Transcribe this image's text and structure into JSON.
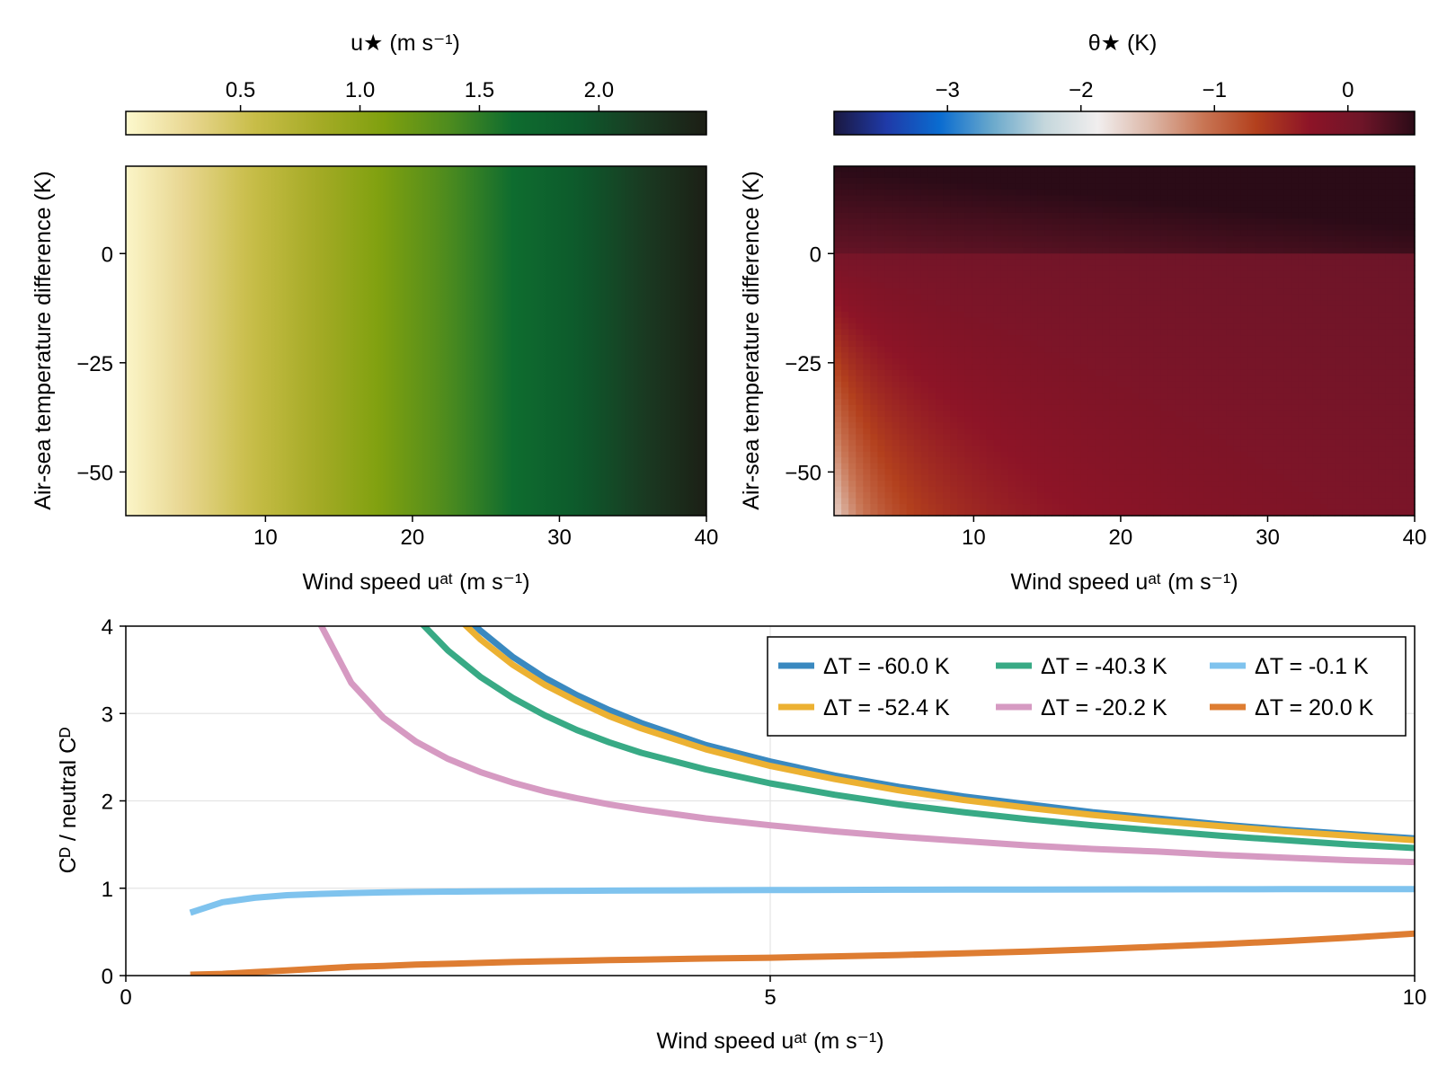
{
  "figure_title": "",
  "chart_data": [
    {
      "type": "heatmap",
      "title": "",
      "xlabel": "Wind speed uᵃᵗ (m s⁻¹)",
      "ylabel": "Air-sea temperature difference (K)",
      "xlim": [
        0.5,
        40
      ],
      "ylim": [
        -60,
        20
      ],
      "xticks": [
        10,
        20,
        30,
        40
      ],
      "xtick_labels": [
        "10",
        "20",
        "30",
        "40"
      ],
      "yticks": [
        0,
        -25,
        -50
      ],
      "ytick_labels": [
        "0",
        "−25",
        "−50"
      ],
      "grid": false,
      "colorbar": {
        "label": "u★ (m s⁻¹)",
        "position": "top",
        "range": [
          0.02,
          2.45
        ],
        "ticks": [
          0.5,
          1.0,
          1.5,
          2.0
        ],
        "tick_labels": [
          "0.5",
          "1.0",
          "1.5",
          "2.0"
        ],
        "colormap": [
          "#fdf9ce",
          "#e8d690",
          "#c8bd48",
          "#a5ab26",
          "#7fa00f",
          "#4e8c1e",
          "#0e6c2f",
          "#0d5a2c",
          "#1a3a22",
          "#1c1e15"
        ]
      }
    },
    {
      "type": "heatmap",
      "title": "",
      "xlabel": "Wind speed uᵃᵗ (m s⁻¹)",
      "ylabel": "Air-sea temperature difference (K)",
      "xlim": [
        0.5,
        40
      ],
      "ylim": [
        -60,
        20
      ],
      "xticks": [
        10,
        20,
        30,
        40
      ],
      "xtick_labels": [
        "10",
        "20",
        "30",
        "40"
      ],
      "yticks": [
        0,
        -25,
        -50
      ],
      "ytick_labels": [
        "0",
        "−25",
        "−50"
      ],
      "grid": false,
      "colorbar": {
        "label": "θ★ (K)",
        "position": "top",
        "range": [
          -3.85,
          0.5
        ],
        "ticks": [
          -3,
          -2,
          -1,
          0
        ],
        "tick_labels": [
          "−3",
          "−2",
          "−1",
          "0"
        ],
        "colormap": [
          "#1a1840",
          "#1f3aa8",
          "#0a6cd0",
          "#6aa9cc",
          "#c5d7dc",
          "#f1eeee",
          "#dcb6a6",
          "#c87554",
          "#b3401d",
          "#8d1427",
          "#6e1528",
          "#2b0b17"
        ]
      }
    },
    {
      "type": "line",
      "title": "",
      "xlabel": "Wind speed uᵃᵗ (m s⁻¹)",
      "ylabel": "Cᴰ / neutral Cᴰ",
      "xlim": [
        0,
        10
      ],
      "ylim": [
        0,
        4
      ],
      "xticks": [
        0,
        5,
        10
      ],
      "xtick_labels": [
        "0",
        "5",
        "10"
      ],
      "yticks": [
        0,
        1,
        2,
        3,
        4
      ],
      "ytick_labels": [
        "0",
        "1",
        "2",
        "3",
        "4"
      ],
      "grid": true,
      "legend_position": "top-right",
      "x": [
        0.5,
        0.75,
        1.0,
        1.25,
        1.5,
        1.75,
        2.0,
        2.25,
        2.5,
        2.75,
        3.0,
        3.25,
        3.5,
        3.75,
        4.0,
        4.5,
        5.0,
        5.5,
        6.0,
        6.5,
        7.0,
        7.5,
        8.0,
        8.5,
        9.0,
        9.5,
        10.0
      ],
      "series": [
        {
          "name": "ΔT = -60.0 K",
          "color": "#3a89c0",
          "values": [
            null,
            null,
            null,
            null,
            null,
            null,
            null,
            null,
            4.3,
            3.95,
            3.65,
            3.41,
            3.21,
            3.04,
            2.89,
            2.64,
            2.45,
            2.29,
            2.16,
            2.05,
            1.96,
            1.87,
            1.8,
            1.73,
            1.67,
            1.62,
            1.57
          ]
        },
        {
          "name": "ΔT = -52.4 K",
          "color": "#ecb132",
          "values": [
            null,
            null,
            null,
            null,
            null,
            null,
            null,
            null,
            4.2,
            3.85,
            3.56,
            3.33,
            3.14,
            2.97,
            2.83,
            2.59,
            2.4,
            2.25,
            2.12,
            2.01,
            1.92,
            1.84,
            1.77,
            1.71,
            1.65,
            1.6,
            1.55
          ]
        },
        {
          "name": "ΔT = -40.3 K",
          "color": "#38aa85",
          "values": [
            null,
            null,
            null,
            null,
            null,
            null,
            null,
            4.1,
            3.72,
            3.42,
            3.18,
            2.98,
            2.81,
            2.67,
            2.55,
            2.36,
            2.2,
            2.07,
            1.96,
            1.87,
            1.79,
            1.72,
            1.66,
            1.6,
            1.55,
            1.5,
            1.46
          ]
        },
        {
          "name": "ΔT = -20.2 K",
          "color": "#d69ac2",
          "values": [
            null,
            null,
            null,
            null,
            4.05,
            3.35,
            2.95,
            2.68,
            2.48,
            2.33,
            2.21,
            2.11,
            2.03,
            1.96,
            1.9,
            1.8,
            1.72,
            1.65,
            1.59,
            1.54,
            1.49,
            1.45,
            1.42,
            1.38,
            1.35,
            1.32,
            1.3
          ]
        },
        {
          "name": "ΔT = -0.1 K",
          "color": "#7fc3ee",
          "values": [
            0.72,
            0.84,
            0.89,
            0.92,
            0.935,
            0.945,
            0.952,
            0.957,
            0.961,
            0.964,
            0.967,
            0.969,
            0.971,
            0.973,
            0.974,
            0.977,
            0.979,
            0.981,
            0.983,
            0.984,
            0.985,
            0.986,
            0.987,
            0.988,
            0.989,
            0.99,
            0.99
          ]
        },
        {
          "name": "ΔT = 20.0 K",
          "color": "#de7d32",
          "values": [
            0.01,
            0.02,
            0.04,
            0.06,
            0.08,
            0.1,
            0.11,
            0.125,
            0.135,
            0.145,
            0.155,
            0.163,
            0.17,
            0.177,
            0.183,
            0.195,
            0.205,
            0.22,
            0.235,
            0.255,
            0.275,
            0.3,
            0.33,
            0.36,
            0.395,
            0.435,
            0.48
          ]
        }
      ]
    }
  ]
}
